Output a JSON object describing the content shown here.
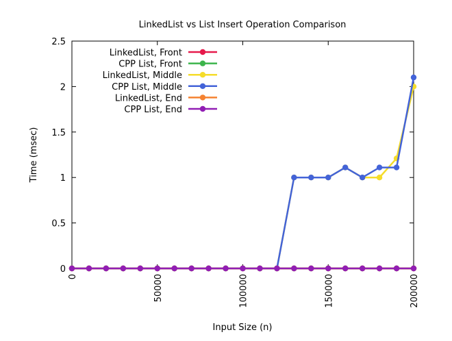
{
  "chart_data": {
    "type": "line",
    "title": "LinkedList vs List Insert Operation Comparison",
    "xlabel": "Input Size (n)",
    "ylabel": "Time (msec)",
    "xlim": [
      0,
      200000
    ],
    "ylim": [
      0,
      2.5
    ],
    "grid": false,
    "legend_position": "top-left",
    "x_ticks": [
      0,
      50000,
      100000,
      150000,
      200000
    ],
    "y_ticks": [
      0,
      0.5,
      1,
      1.5,
      2,
      2.5
    ],
    "x": [
      0,
      10000,
      20000,
      30000,
      40000,
      50000,
      60000,
      70000,
      80000,
      90000,
      100000,
      110000,
      120000,
      130000,
      140000,
      150000,
      160000,
      170000,
      180000,
      190000,
      200000
    ],
    "series": [
      {
        "name": "LinkedList, Front",
        "color": "#e6194b",
        "values": [
          0,
          0,
          0,
          0,
          0,
          0,
          0,
          0,
          0,
          0,
          0,
          0,
          0,
          0,
          0,
          0,
          0,
          0,
          0,
          0,
          0
        ]
      },
      {
        "name": "CPP List, Front",
        "color": "#3cb44b",
        "values": [
          0,
          0,
          0,
          0,
          0,
          0,
          0,
          0,
          0,
          0,
          0,
          0,
          0,
          0,
          0,
          0,
          0,
          0,
          0,
          0,
          0
        ]
      },
      {
        "name": "LinkedList, Middle",
        "color": "#f5dc2a",
        "values": [
          0,
          0,
          0,
          0,
          0,
          0,
          0,
          0,
          0,
          0,
          0,
          0,
          0,
          1,
          1,
          1,
          1.11,
          1,
          1,
          1.21,
          2
        ]
      },
      {
        "name": "CPP List, Middle",
        "color": "#4363d8",
        "values": [
          0,
          0,
          0,
          0,
          0,
          0,
          0,
          0,
          0,
          0,
          0,
          0,
          0,
          1,
          1,
          1,
          1.11,
          1,
          1.11,
          1.11,
          2.1
        ]
      },
      {
        "name": "LinkedList, End",
        "color": "#f58231",
        "values": [
          0,
          0,
          0,
          0,
          0,
          0,
          0,
          0,
          0,
          0,
          0,
          0,
          0,
          0,
          0,
          0,
          0,
          0,
          0,
          0,
          0
        ]
      },
      {
        "name": "CPP List, End",
        "color": "#911eb4",
        "values": [
          0,
          0,
          0,
          0,
          0,
          0,
          0,
          0,
          0,
          0,
          0,
          0,
          0,
          0,
          0,
          0,
          0,
          0,
          0,
          0,
          0
        ]
      }
    ]
  }
}
